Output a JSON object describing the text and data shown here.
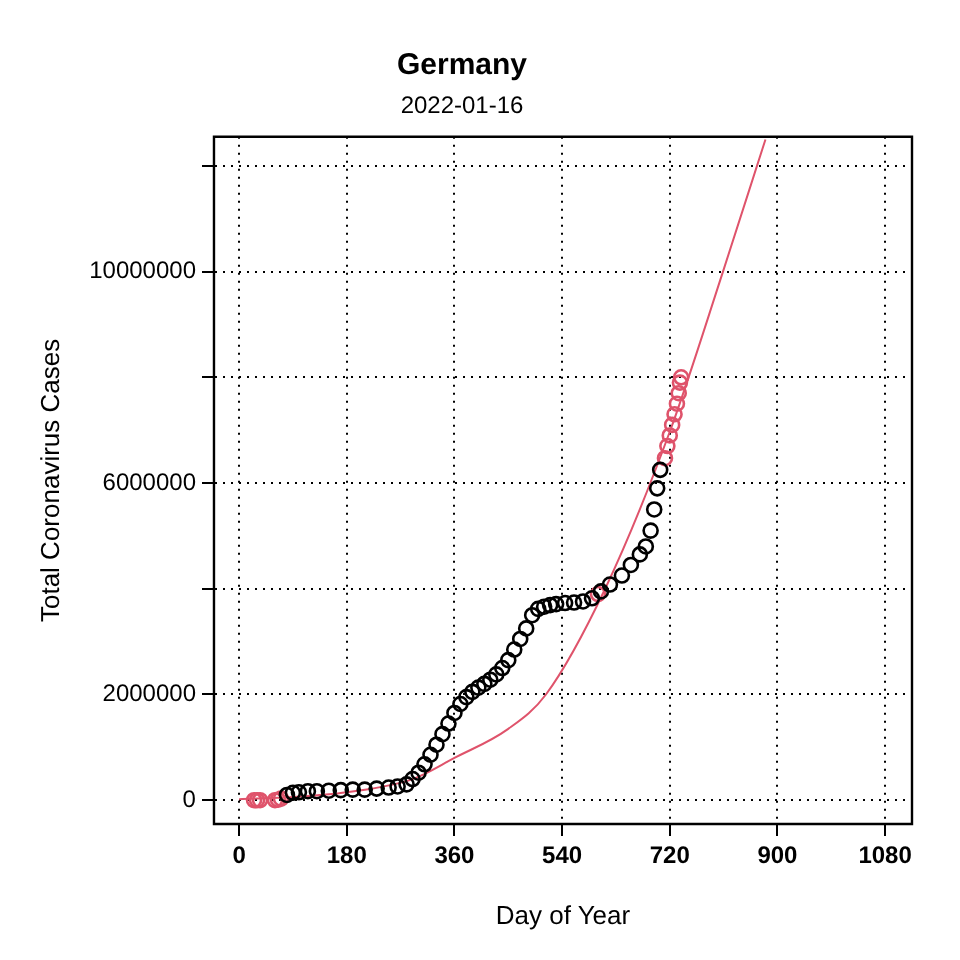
{
  "chart_data": {
    "type": "scatter",
    "title": "Germany",
    "subtitle": "2022-01-16",
    "xlabel": "Day of Year",
    "ylabel": "Total Coronavirus Cases",
    "xlim": [
      -42,
      1125
    ],
    "xticks": [
      0,
      180,
      360,
      540,
      720,
      900,
      1080
    ],
    "ylim": [
      -450000,
      12550000
    ],
    "yticks": [
      0,
      2000000,
      {
        "value": 4000000,
        "label": null
      },
      6000000,
      {
        "value": 8000000,
        "label": null
      },
      10000000,
      {
        "value": 12000000,
        "label": null
      }
    ],
    "grid": true,
    "marker": "circle",
    "series": [
      {
        "color": "#000000",
        "x": [
          80,
          90,
          100,
          115,
          130,
          150,
          170,
          190,
          210,
          230,
          250,
          265,
          280,
          290,
          300,
          310,
          320,
          330,
          340,
          350,
          360,
          370,
          380,
          390,
          400,
          410,
          420,
          430,
          440,
          450,
          460,
          470,
          480,
          490,
          500,
          510,
          520,
          530,
          545,
          560,
          575,
          590,
          605,
          620,
          640,
          655,
          670,
          680,
          688,
          694,
          699,
          704
        ],
        "values": [
          100000,
          140000,
          150000,
          170000,
          170000,
          180000,
          190000,
          200000,
          200000,
          220000,
          240000,
          260000,
          300000,
          400000,
          520000,
          680000,
          860000,
          1050000,
          1250000,
          1450000,
          1650000,
          1820000,
          1950000,
          2050000,
          2130000,
          2200000,
          2280000,
          2380000,
          2500000,
          2650000,
          2850000,
          3050000,
          3250000,
          3500000,
          3620000,
          3660000,
          3690000,
          3710000,
          3730000,
          3740000,
          3760000,
          3820000,
          3950000,
          4080000,
          4250000,
          4450000,
          4650000,
          4800000,
          5100000,
          5500000,
          5900000,
          6250000
        ]
      },
      {
        "color": "#df536b",
        "x": [
          25,
          30,
          35,
          60,
          65,
          70,
          75,
          600,
          712,
          716,
          720,
          724,
          728,
          732,
          735,
          737,
          739
        ],
        "values": [
          0,
          0,
          0,
          0,
          10000,
          30000,
          null,
          3900000,
          6470000,
          6700000,
          6900000,
          7100000,
          7300000,
          7500000,
          7700000,
          7900000,
          8000000
        ]
      },
      {
        "type": "line",
        "color": "#df536b",
        "marker": "none",
        "x": [
          0,
          90,
          180,
          290,
          360,
          450,
          513,
          612,
          720,
          809,
          880
        ],
        "values": [
          20000,
          60000,
          150000,
          400000,
          800000,
          1350000,
          2000000,
          4000000,
          6970000,
          10000000,
          12500000
        ]
      }
    ]
  }
}
